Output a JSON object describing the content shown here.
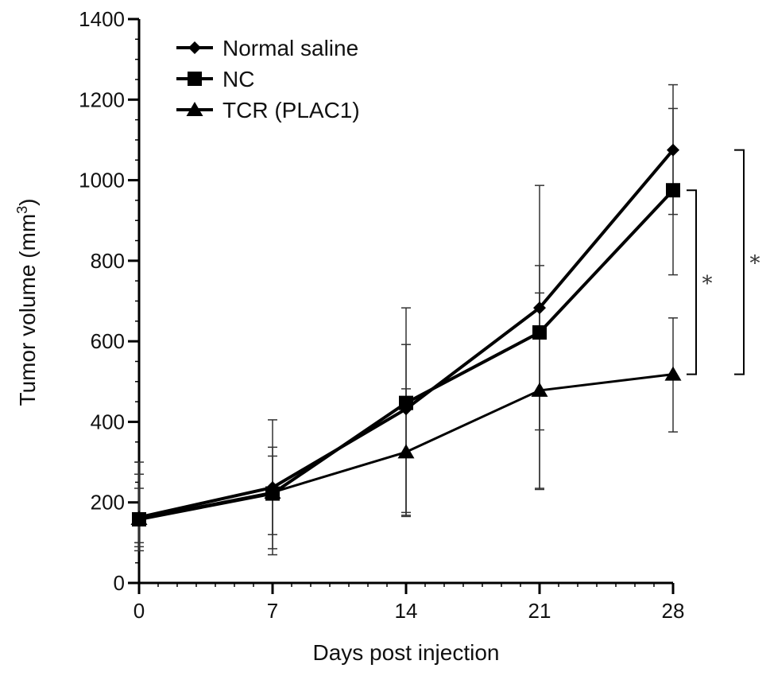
{
  "chart_data": {
    "type": "line",
    "title": "",
    "xlabel": "Days post injection",
    "ylabel_main": "Tumor volume (mm",
    "ylabel_sup": "3",
    "ylabel_close": ")",
    "x": [
      0,
      7,
      14,
      21,
      28
    ],
    "x_ticks": [
      "0",
      "7",
      "14",
      "21",
      "28"
    ],
    "y_ticks": [
      "0",
      "200",
      "400",
      "600",
      "800",
      "1000",
      "1200",
      "1400"
    ],
    "xlim": [
      0,
      28
    ],
    "ylim": [
      0,
      1400
    ],
    "grid": false,
    "legend_position": "top-left",
    "series": [
      {
        "name": "Normal saline",
        "marker": "diamond",
        "values": [
          163,
          237,
          432,
          683,
          1075
        ],
        "err_upper": [
          300,
          405,
          683,
          987,
          1237
        ],
        "err_lower": [
          90,
          85,
          175,
          380,
          915
        ],
        "color": "#000000"
      },
      {
        "name": "NC",
        "marker": "square",
        "values": [
          158,
          222,
          447,
          622,
          975
        ],
        "err_upper": [
          270,
          337,
          592,
          788,
          1178
        ],
        "err_lower": [
          80,
          70,
          165,
          232,
          765
        ],
        "color": "#000000"
      },
      {
        "name": "TCR (PLAC1)",
        "marker": "triangle",
        "values": [
          160,
          225,
          325,
          478,
          518
        ],
        "err_upper": [
          235,
          315,
          482,
          720,
          658
        ],
        "err_lower": [
          100,
          120,
          168,
          235,
          375
        ],
        "color": "#000000"
      }
    ],
    "annotations": [
      {
        "label": "*",
        "from_series": "NC",
        "to_series": "TCR (PLAC1)"
      },
      {
        "label": "*",
        "from_series": "Normal saline",
        "to_series": "TCR (PLAC1)"
      }
    ]
  }
}
